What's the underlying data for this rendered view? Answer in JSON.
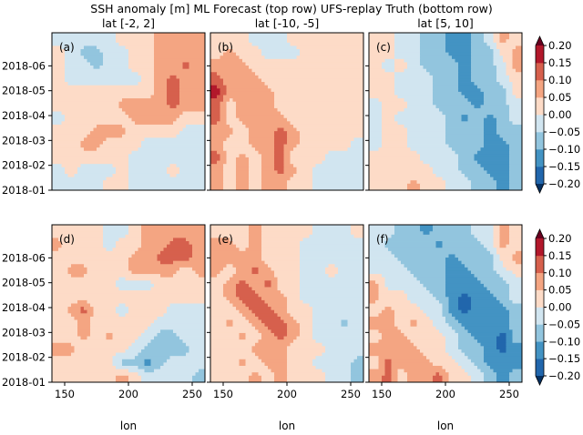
{
  "chart_data": {
    "type": "heatmap",
    "title": "SSH anomaly [m] ML Forecast (top row) UFS-replay Truth (bottom row)",
    "xlabel": "lon",
    "x_ticks": [
      150,
      200,
      250
    ],
    "xlim": [
      140,
      260
    ],
    "y_tick_labels": [
      "2018-01",
      "2018-02",
      "2018-03",
      "2018-04",
      "2018-05",
      "2018-06"
    ],
    "ylim_months_since_2018_01": [
      0,
      6.33
    ],
    "column_titles": [
      "lat [-2, 2]",
      "lat [-10, -5]",
      "lat [5, 10]"
    ],
    "colorbar": {
      "ticks": [
        "0.20",
        "0.15",
        "0.10",
        "0.05",
        "0.00",
        "−0.05",
        "−0.10",
        "−0.15",
        "−0.20"
      ],
      "levels": [
        -0.2,
        -0.15,
        -0.1,
        -0.05,
        0,
        0.05,
        0.1,
        0.15,
        0.2
      ],
      "colors": [
        "#2166ac",
        "#4393c3",
        "#92c5de",
        "#d1e5f0",
        "#fddbc7",
        "#f4a582",
        "#d6604d",
        "#b2182b"
      ],
      "under": "#053061",
      "over": "#67001f",
      "extend": "both"
    },
    "grid_lon_centers": [
      145,
      155,
      165,
      175,
      185,
      195,
      205,
      215,
      225,
      235,
      245,
      255
    ],
    "grid_row_order": "latest (top) to earliest (bottom)",
    "panels": [
      {
        "label": "(a)",
        "z": [
          [
            -0.02,
            -0.02,
            -0.02,
            -0.02,
            -0.02,
            0.02,
            0.02,
            0.02,
            0.07,
            0.07,
            0.07,
            0.07
          ],
          [
            0.02,
            -0.02,
            -0.07,
            -0.07,
            -0.02,
            -0.02,
            0.02,
            0.02,
            0.07,
            0.07,
            0.07,
            0.07
          ],
          [
            0.02,
            -0.02,
            -0.02,
            -0.07,
            -0.02,
            -0.02,
            0.02,
            0.02,
            0.07,
            0.07,
            0.12,
            0.07
          ],
          [
            0.02,
            -0.02,
            -0.02,
            -0.02,
            -0.02,
            -0.02,
            -0.02,
            0.02,
            0.07,
            0.12,
            0.07,
            0.07
          ],
          [
            0.02,
            0.02,
            0.02,
            0.02,
            0.02,
            0.02,
            0.02,
            0.02,
            0.07,
            0.12,
            0.07,
            0.07
          ],
          [
            0.02,
            0.02,
            0.02,
            0.02,
            0.02,
            0.07,
            0.07,
            0.07,
            0.07,
            0.12,
            0.07,
            0.07
          ],
          [
            -0.02,
            0.02,
            0.02,
            0.02,
            0.02,
            0.02,
            0.07,
            0.07,
            0.07,
            0.07,
            0.02,
            0.02
          ],
          [
            0.02,
            0.02,
            0.02,
            0.07,
            0.07,
            0.07,
            0.02,
            0.02,
            0.02,
            0.02,
            -0.02,
            -0.02
          ],
          [
            0.02,
            0.02,
            0.07,
            0.07,
            0.02,
            0.02,
            0.02,
            -0.02,
            -0.02,
            -0.02,
            -0.02,
            -0.02
          ],
          [
            0.02,
            0.02,
            0.02,
            0.02,
            0.02,
            0.02,
            -0.02,
            -0.02,
            -0.02,
            -0.02,
            -0.02,
            -0.02
          ],
          [
            -0.02,
            0.02,
            -0.02,
            -0.02,
            -0.02,
            0.02,
            -0.02,
            -0.02,
            -0.02,
            0.02,
            -0.02,
            -0.02
          ],
          [
            -0.02,
            -0.02,
            -0.02,
            -0.02,
            0.02,
            0.02,
            -0.02,
            -0.02,
            -0.02,
            -0.02,
            -0.02,
            -0.02
          ]
        ]
      },
      {
        "label": "(b)",
        "z": [
          [
            0.02,
            0.02,
            0.02,
            -0.02,
            -0.02,
            -0.02,
            0.02,
            0.02,
            0.02,
            0.02,
            0.02,
            0.02
          ],
          [
            0.02,
            0.07,
            0.02,
            0.02,
            -0.02,
            -0.02,
            -0.02,
            0.02,
            0.02,
            0.02,
            0.02,
            0.02
          ],
          [
            0.07,
            0.07,
            0.07,
            0.02,
            0.02,
            0.02,
            0.02,
            0.02,
            0.02,
            0.02,
            0.02,
            0.02
          ],
          [
            0.12,
            0.07,
            0.07,
            0.07,
            0.02,
            0.02,
            0.02,
            0.02,
            0.02,
            0.02,
            0.02,
            0.02
          ],
          [
            0.17,
            0.07,
            0.07,
            0.07,
            0.07,
            0.02,
            0.02,
            0.02,
            0.02,
            0.02,
            0.02,
            0.02
          ],
          [
            0.12,
            0.02,
            0.07,
            0.07,
            0.07,
            0.02,
            0.02,
            0.02,
            0.02,
            0.02,
            0.02,
            0.02
          ],
          [
            0.12,
            0.02,
            0.07,
            0.07,
            0.07,
            0.07,
            0.02,
            0.02,
            0.02,
            0.02,
            0.02,
            0.02
          ],
          [
            0.07,
            0.07,
            0.02,
            0.07,
            0.07,
            0.12,
            0.07,
            0.02,
            0.02,
            0.02,
            0.02,
            0.02
          ],
          [
            0.07,
            0.02,
            0.02,
            0.07,
            0.07,
            0.12,
            0.07,
            0.02,
            0.02,
            0.02,
            0.02,
            -0.02
          ],
          [
            0.12,
            0.02,
            0.07,
            0.02,
            0.07,
            0.12,
            0.02,
            0.02,
            0.02,
            -0.02,
            -0.02,
            -0.02
          ],
          [
            0.07,
            0.02,
            0.07,
            0.02,
            0.07,
            0.12,
            0.07,
            0.02,
            -0.02,
            -0.02,
            -0.02,
            -0.02
          ],
          [
            0.07,
            0.02,
            0.07,
            0.02,
            0.07,
            0.07,
            0.02,
            0.02,
            -0.02,
            -0.02,
            -0.02,
            -0.02
          ]
        ]
      },
      {
        "label": "(c)",
        "z": [
          [
            0.02,
            0.02,
            -0.02,
            -0.02,
            -0.07,
            -0.07,
            -0.12,
            -0.12,
            -0.07,
            -0.02,
            0.07,
            0.02
          ],
          [
            0.02,
            0.02,
            -0.02,
            -0.02,
            -0.07,
            -0.07,
            -0.12,
            -0.12,
            -0.07,
            -0.07,
            0.02,
            0.07
          ],
          [
            0.02,
            -0.02,
            0.02,
            -0.02,
            -0.07,
            -0.07,
            -0.07,
            -0.12,
            -0.07,
            -0.07,
            -0.02,
            0.07
          ],
          [
            0.02,
            0.02,
            -0.02,
            -0.02,
            -0.02,
            -0.07,
            -0.07,
            -0.12,
            -0.07,
            -0.07,
            -0.02,
            0.02
          ],
          [
            0.02,
            0.02,
            -0.02,
            -0.02,
            -0.02,
            -0.07,
            -0.07,
            -0.12,
            -0.12,
            -0.07,
            -0.07,
            0.02
          ],
          [
            -0.02,
            0.02,
            0.02,
            -0.02,
            -0.02,
            -0.07,
            -0.07,
            -0.07,
            -0.12,
            -0.07,
            -0.07,
            -0.02
          ],
          [
            -0.02,
            0.02,
            -0.02,
            -0.02,
            -0.02,
            -0.02,
            -0.07,
            -0.12,
            -0.07,
            -0.12,
            -0.07,
            -0.02
          ],
          [
            -0.02,
            0.02,
            0.02,
            -0.02,
            -0.02,
            -0.02,
            -0.07,
            -0.07,
            -0.07,
            -0.12,
            -0.07,
            -0.07
          ],
          [
            -0.02,
            0.02,
            0.02,
            -0.02,
            -0.02,
            -0.02,
            -0.07,
            -0.07,
            -0.07,
            -0.12,
            -0.12,
            -0.07
          ],
          [
            0.02,
            0.02,
            0.02,
            0.02,
            -0.02,
            -0.02,
            -0.02,
            -0.07,
            -0.12,
            -0.12,
            -0.12,
            -0.07
          ],
          [
            0.02,
            0.02,
            0.02,
            0.02,
            0.02,
            -0.02,
            -0.02,
            -0.07,
            -0.07,
            -0.12,
            -0.12,
            -0.07
          ],
          [
            0.02,
            0.02,
            0.02,
            0.07,
            0.02,
            0.02,
            -0.02,
            -0.02,
            -0.07,
            -0.07,
            -0.12,
            -0.07
          ]
        ]
      },
      {
        "label": "(d)",
        "z": [
          [
            0.02,
            0.02,
            0.02,
            0.02,
            -0.02,
            -0.02,
            0.02,
            0.07,
            0.07,
            0.07,
            0.07,
            0.07
          ],
          [
            0.07,
            0.02,
            0.02,
            0.02,
            -0.02,
            0.02,
            0.02,
            0.07,
            0.07,
            0.12,
            0.12,
            0.07
          ],
          [
            0.02,
            0.02,
            0.02,
            0.02,
            0.02,
            0.02,
            0.07,
            0.07,
            0.12,
            0.12,
            0.12,
            0.07
          ],
          [
            0.02,
            0.07,
            0.07,
            0.02,
            0.02,
            0.02,
            0.07,
            0.07,
            0.07,
            0.07,
            0.02,
            0.07
          ],
          [
            0.02,
            0.02,
            0.02,
            0.02,
            0.02,
            -0.02,
            -0.02,
            -0.02,
            0.02,
            0.02,
            0.02,
            0.02
          ],
          [
            0.02,
            0.02,
            0.02,
            0.02,
            0.02,
            0.02,
            0.02,
            0.02,
            0.02,
            0.02,
            0.02,
            0.02
          ],
          [
            0.02,
            0.07,
            0.12,
            0.02,
            0.02,
            -0.02,
            0.02,
            0.02,
            0.02,
            -0.02,
            -0.02,
            -0.02
          ],
          [
            0.02,
            0.02,
            0.07,
            0.02,
            0.02,
            0.02,
            0.02,
            0.02,
            -0.02,
            -0.02,
            -0.02,
            -0.02
          ],
          [
            0.02,
            0.02,
            0.07,
            0.02,
            0.07,
            0.02,
            0.02,
            -0.02,
            -0.07,
            -0.07,
            -0.02,
            -0.02
          ],
          [
            0.07,
            0.07,
            0.02,
            0.02,
            0.02,
            0.02,
            -0.02,
            -0.07,
            -0.07,
            -0.07,
            -0.07,
            -0.02
          ],
          [
            0.02,
            0.02,
            0.02,
            0.02,
            0.02,
            -0.07,
            -0.07,
            -0.12,
            -0.07,
            -0.02,
            -0.02,
            -0.02
          ],
          [
            0.02,
            0.02,
            0.02,
            0.02,
            0.02,
            0.07,
            0.02,
            -0.02,
            -0.02,
            -0.02,
            -0.02,
            -0.07
          ]
        ]
      },
      {
        "label": "(e)",
        "z": [
          [
            0.02,
            0.02,
            0.02,
            0.07,
            0.02,
            0.02,
            0.02,
            0.02,
            -0.02,
            -0.02,
            -0.02,
            0.02
          ],
          [
            0.07,
            0.07,
            0.02,
            0.07,
            0.02,
            0.02,
            0.02,
            -0.02,
            -0.02,
            -0.02,
            -0.02,
            -0.02
          ],
          [
            0.07,
            0.07,
            0.07,
            0.07,
            0.02,
            0.02,
            0.02,
            -0.02,
            -0.02,
            -0.02,
            -0.02,
            -0.02
          ],
          [
            0.07,
            0.02,
            0.07,
            0.12,
            0.07,
            0.02,
            0.02,
            -0.02,
            -0.02,
            0.02,
            -0.02,
            -0.02
          ],
          [
            0.02,
            0.07,
            0.12,
            0.07,
            0.12,
            0.02,
            0.02,
            -0.02,
            -0.02,
            -0.02,
            -0.02,
            -0.02
          ],
          [
            0.02,
            0.07,
            0.12,
            0.12,
            0.07,
            0.07,
            0.02,
            -0.02,
            -0.02,
            -0.02,
            -0.02,
            -0.02
          ],
          [
            0.02,
            0.02,
            0.07,
            0.12,
            0.12,
            0.07,
            0.02,
            0.02,
            -0.02,
            -0.02,
            -0.02,
            -0.02
          ],
          [
            0.02,
            0.07,
            0.02,
            0.07,
            0.12,
            0.12,
            0.07,
            0.02,
            -0.02,
            -0.02,
            -0.07,
            -0.02
          ],
          [
            0.02,
            0.02,
            0.07,
            0.02,
            0.07,
            0.12,
            0.07,
            0.02,
            -0.02,
            -0.02,
            -0.02,
            -0.02
          ],
          [
            0.02,
            0.02,
            0.02,
            0.07,
            0.07,
            0.07,
            0.02,
            0.02,
            0.02,
            -0.02,
            -0.02,
            -0.02
          ],
          [
            0.02,
            0.02,
            0.07,
            0.02,
            0.07,
            0.07,
            0.02,
            0.02,
            -0.02,
            -0.02,
            -0.02,
            -0.07
          ],
          [
            0.02,
            0.02,
            0.02,
            0.07,
            0.02,
            0.07,
            0.02,
            0.02,
            0.02,
            -0.02,
            -0.02,
            -0.07
          ]
        ]
      },
      {
        "label": "(f)",
        "z": [
          [
            -0.02,
            -0.02,
            -0.07,
            -0.07,
            -0.12,
            -0.07,
            -0.07,
            -0.07,
            -0.02,
            -0.02,
            0.07,
            0.02
          ],
          [
            -0.02,
            -0.07,
            -0.07,
            -0.07,
            -0.07,
            -0.12,
            -0.07,
            -0.07,
            -0.07,
            -0.02,
            0.07,
            0.02
          ],
          [
            -0.02,
            -0.02,
            -0.07,
            -0.07,
            -0.07,
            -0.07,
            -0.12,
            -0.07,
            -0.07,
            -0.07,
            0.02,
            0.07
          ],
          [
            -0.02,
            -0.02,
            -0.02,
            -0.07,
            -0.07,
            -0.07,
            -0.12,
            -0.12,
            -0.07,
            -0.07,
            -0.02,
            0.02
          ],
          [
            0.07,
            -0.02,
            -0.02,
            -0.02,
            -0.07,
            -0.07,
            -0.12,
            -0.12,
            -0.12,
            -0.07,
            -0.07,
            -0.02
          ],
          [
            0.07,
            0.02,
            0.02,
            -0.02,
            -0.02,
            -0.07,
            -0.12,
            -0.17,
            -0.12,
            -0.12,
            -0.07,
            -0.02
          ],
          [
            0.02,
            0.07,
            0.02,
            0.02,
            -0.02,
            -0.02,
            -0.12,
            -0.17,
            -0.12,
            -0.12,
            -0.12,
            -0.07
          ],
          [
            0.07,
            0.07,
            0.02,
            0.07,
            0.02,
            -0.02,
            -0.07,
            -0.12,
            -0.12,
            -0.12,
            -0.12,
            -0.07
          ],
          [
            0.02,
            0.07,
            0.07,
            0.02,
            0.02,
            0.02,
            -0.02,
            -0.07,
            -0.12,
            -0.12,
            -0.17,
            -0.07
          ],
          [
            0.07,
            0.07,
            0.07,
            0.07,
            0.02,
            0.02,
            -0.02,
            -0.07,
            -0.07,
            -0.12,
            -0.17,
            -0.12
          ],
          [
            0.02,
            0.12,
            0.07,
            0.07,
            0.07,
            0.02,
            0.02,
            -0.02,
            -0.07,
            -0.12,
            -0.12,
            -0.12
          ],
          [
            0.07,
            0.12,
            0.02,
            0.07,
            0.07,
            0.12,
            0.02,
            0.02,
            -0.02,
            -0.07,
            -0.12,
            -0.07
          ]
        ]
      }
    ]
  }
}
